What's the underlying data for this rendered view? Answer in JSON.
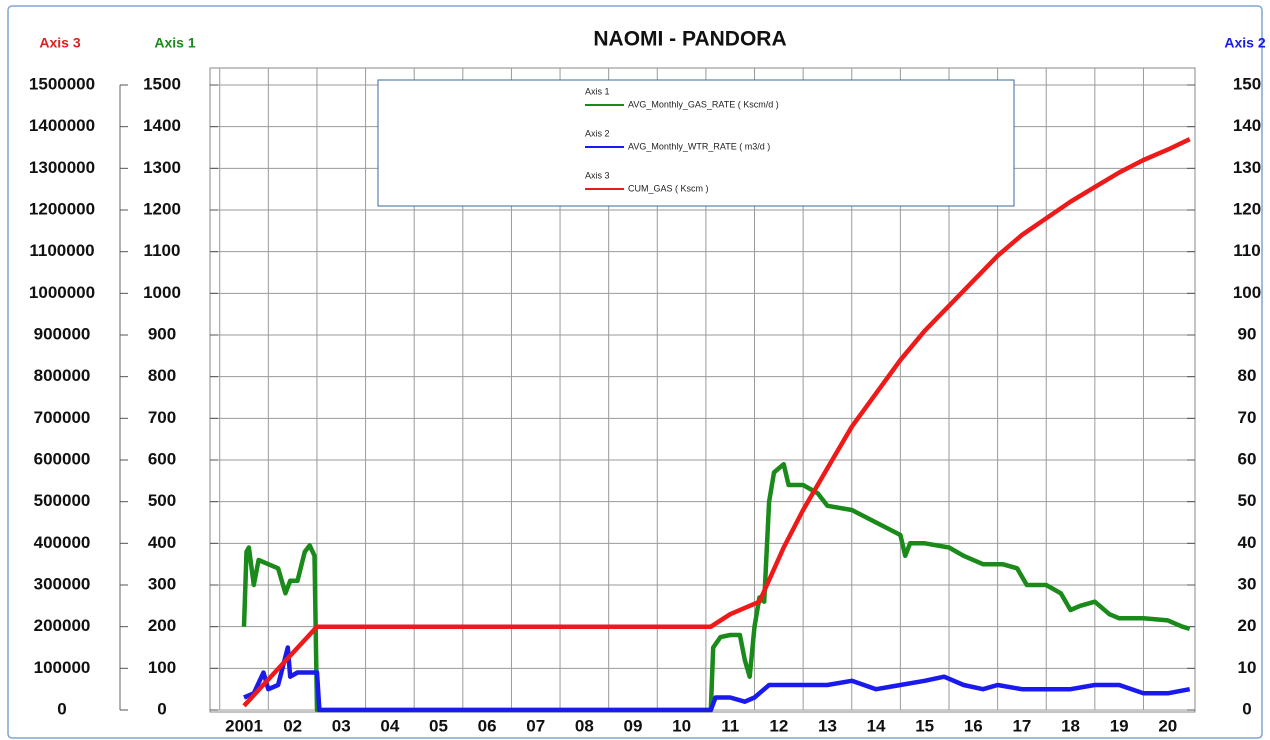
{
  "chart_data": {
    "type": "line",
    "title": "NAOMI - PANDORA",
    "axis_labels": {
      "y3": "Axis 3",
      "y": "Axis 1",
      "y2": "Axis 2"
    },
    "xlim": [
      2000.8,
      2021.06
    ],
    "xticks": [
      {
        "value": 2001,
        "label": "2001"
      },
      {
        "value": 2002,
        "label": "02"
      },
      {
        "value": 2003,
        "label": "03"
      },
      {
        "value": 2004,
        "label": "04"
      },
      {
        "value": 2005,
        "label": "05"
      },
      {
        "value": 2006,
        "label": "06"
      },
      {
        "value": 2007,
        "label": "07"
      },
      {
        "value": 2008,
        "label": "08"
      },
      {
        "value": 2009,
        "label": "09"
      },
      {
        "value": 2010,
        "label": "10"
      },
      {
        "value": 2011,
        "label": "11"
      },
      {
        "value": 2012,
        "label": "12"
      },
      {
        "value": 2013,
        "label": "13"
      },
      {
        "value": 2014,
        "label": "14"
      },
      {
        "value": 2015,
        "label": "15"
      },
      {
        "value": 2016,
        "label": "16"
      },
      {
        "value": 2017,
        "label": "17"
      },
      {
        "value": 2018,
        "label": "18"
      },
      {
        "value": 2019,
        "label": "19"
      },
      {
        "value": 2020,
        "label": "20"
      }
    ],
    "ylim": [
      0,
      1500
    ],
    "yticks": [
      0,
      100,
      200,
      300,
      400,
      500,
      600,
      700,
      800,
      900,
      1000,
      1100,
      1200,
      1300,
      1400,
      1500
    ],
    "y2lim": [
      0,
      150
    ],
    "y2ticks": [
      0,
      10,
      20,
      30,
      40,
      50,
      60,
      70,
      80,
      90,
      100,
      110,
      120,
      130,
      140,
      150
    ],
    "y3lim": [
      0,
      1500000
    ],
    "y3ticks": [
      0,
      100000,
      200000,
      300000,
      400000,
      500000,
      600000,
      700000,
      800000,
      900000,
      1000000,
      1100000,
      1200000,
      1300000,
      1400000,
      1500000
    ],
    "grid": true,
    "series": [
      {
        "legend_group": "Axis 1",
        "name": "AVG_Monthly_GAS_RATE ( Kscm/d )",
        "color": "#1a8a1a",
        "axis": "y",
        "x": [
          2001.5,
          2001.55,
          2001.6,
          2001.7,
          2001.8,
          2002.0,
          2002.2,
          2002.35,
          2002.45,
          2002.6,
          2002.75,
          2002.85,
          2002.95,
          2003.0,
          2011.1,
          2011.15,
          2011.3,
          2011.5,
          2011.7,
          2011.8,
          2011.9,
          2012.0,
          2012.1,
          2012.2,
          2012.3,
          2012.4,
          2012.5,
          2012.6,
          2012.7,
          2013.0,
          2013.3,
          2013.5,
          2014.0,
          2014.5,
          2015.0,
          2015.1,
          2015.2,
          2015.5,
          2016.0,
          2016.3,
          2016.7,
          2017.1,
          2017.4,
          2017.6,
          2018.0,
          2018.3,
          2018.5,
          2018.7,
          2019.0,
          2019.3,
          2019.5,
          2020.0,
          2020.5,
          2020.8,
          2020.95
        ],
        "values": [
          200,
          380,
          390,
          300,
          360,
          350,
          340,
          280,
          310,
          310,
          380,
          395,
          370,
          0,
          0,
          150,
          175,
          180,
          180,
          120,
          80,
          200,
          270,
          260,
          500,
          570,
          580,
          590,
          540,
          540,
          520,
          490,
          480,
          450,
          420,
          370,
          400,
          400,
          390,
          370,
          350,
          350,
          340,
          300,
          300,
          280,
          240,
          250,
          260,
          230,
          220,
          220,
          215,
          200,
          195
        ]
      },
      {
        "legend_group": "Axis 2",
        "name": "AVG_Monthly_WTR_RATE ( m3/d )",
        "color": "#1a1aee",
        "axis": "y2",
        "x": [
          2001.5,
          2001.7,
          2001.9,
          2002.0,
          2002.2,
          2002.4,
          2002.45,
          2002.6,
          2003.0,
          2003.05,
          2011.1,
          2011.2,
          2011.5,
          2011.8,
          2012.0,
          2012.3,
          2012.6,
          2013.0,
          2013.5,
          2014.0,
          2014.5,
          2015.0,
          2015.5,
          2015.9,
          2016.3,
          2016.7,
          2017.0,
          2017.5,
          2018.0,
          2018.5,
          2019.0,
          2019.5,
          2020.0,
          2020.5,
          2020.95
        ],
        "values": [
          3,
          4,
          9,
          5,
          6,
          15,
          8,
          9,
          9,
          0,
          0,
          3,
          3,
          2,
          3,
          6,
          6,
          6,
          6,
          7,
          5,
          6,
          7,
          8,
          6,
          5,
          6,
          5,
          5,
          5,
          6,
          6,
          4,
          4,
          5
        ]
      },
      {
        "legend_group": "Axis 3",
        "name": "CUM_GAS ( Kscm )",
        "color": "#ee1a1a",
        "axis": "y3",
        "x": [
          2001.5,
          2003.0,
          2011.1,
          2011.5,
          2012.1,
          2012.6,
          2013.0,
          2013.5,
          2014.0,
          2014.5,
          2015.0,
          2015.5,
          2016.0,
          2016.5,
          2017.0,
          2017.5,
          2018.0,
          2018.5,
          2019.0,
          2019.5,
          2020.0,
          2020.5,
          2020.95
        ],
        "values": [
          10000,
          200000,
          200000,
          230000,
          260000,
          390000,
          480000,
          580000,
          680000,
          760000,
          840000,
          910000,
          970000,
          1030000,
          1090000,
          1140000,
          1180000,
          1220000,
          1255000,
          1290000,
          1320000,
          1345000,
          1370000
        ]
      }
    ]
  }
}
